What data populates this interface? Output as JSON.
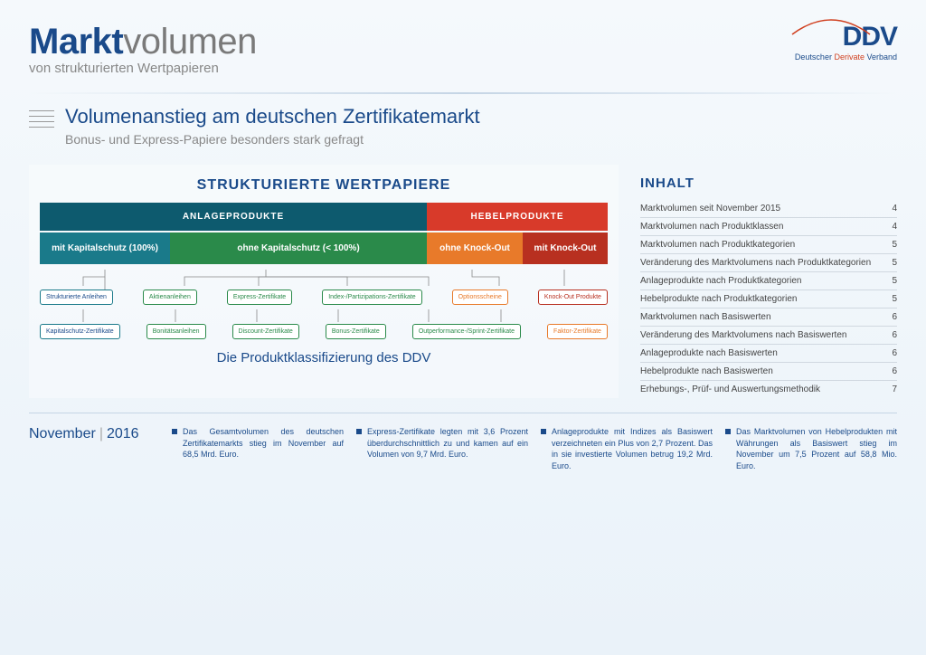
{
  "header": {
    "title_bold": "Markt",
    "title_rest": "volumen",
    "subtitle": "von strukturierten Wertpapieren",
    "logo_main": "DDV",
    "logo_sub_pre": "Deutscher ",
    "logo_sub_accent": "Derivate ",
    "logo_sub_post": "Verband"
  },
  "section": {
    "title": "Volumenanstieg am deutschen Zertifikatemarkt",
    "subtitle": "Bonus- und Express-Papiere besonders stark gefragt"
  },
  "diagram": {
    "title": "STRUKTURIERTE WERTPAPIERE",
    "level1": {
      "a": "ANLAGEPRODUKTE",
      "b": "HEBELPRODUKTE"
    },
    "level2": {
      "a": "mit Kapitalschutz (100%)",
      "b": "ohne Kapitalschutz (< 100%)",
      "c": "ohne Knock-Out",
      "d": "mit Knock-Out"
    },
    "chips_row1": {
      "c0": "Strukturierte Anleihen",
      "c1": "Aktienanleihen",
      "c2": "Express-Zertifikate",
      "c3": "Index-/Partizipations-Zertifikate",
      "c4": "Optionsscheine",
      "c5": "Knock-Out Produkte"
    },
    "chips_row2": {
      "c0": "Kapitalschutz-Zertifikate",
      "c1": "Bonitätsanleihen",
      "c2": "Discount-Zertifikate",
      "c3": "Bonus-Zertifikate",
      "c4": "Outperformance-/Sprint-Zertifikate",
      "c5": "Faktor-Zertifikate"
    },
    "footer": "Die Produktklassifizierung des DDV",
    "colors": {
      "teal": "#0d5a6e",
      "red": "#d83a2a",
      "cyan": "#1a7a8a",
      "green": "#2a8a4a",
      "orange": "#e87a2a",
      "darkred": "#b83020"
    }
  },
  "toc": {
    "title": "INHALT",
    "items": [
      {
        "label": "Marktvolumen seit November 2015",
        "page": "4"
      },
      {
        "label": "Marktvolumen nach Produktklassen",
        "page": "4"
      },
      {
        "label": "Marktvolumen nach Produktkategorien",
        "page": "5"
      },
      {
        "label": "Veränderung des Marktvolumens nach Produktkategorien",
        "page": "5"
      },
      {
        "label": "Anlageprodukte nach Produktkategorien",
        "page": "5"
      },
      {
        "label": "Hebelprodukte nach Produktkategorien",
        "page": "5"
      },
      {
        "label": "Marktvolumen nach Basiswerten",
        "page": "6"
      },
      {
        "label": "Veränderung des Marktvolumens nach Basiswerten",
        "page": "6"
      },
      {
        "label": "Anlageprodukte nach Basiswerten",
        "page": "6"
      },
      {
        "label": "Hebelprodukte nach Basiswerten",
        "page": "6"
      },
      {
        "label": "Erhebungs-, Prüf- und Auswertungsmethodik",
        "page": "7"
      }
    ]
  },
  "footer": {
    "month": "November",
    "year": "2016",
    "items": [
      "Das Gesamtvolumen des deutschen Zertifikatemarkts stieg im November auf 68,5 Mrd. Euro.",
      "Express-Zertifikate legten mit 3,6 Prozent überdurchschnittlich zu und kamen auf ein Volumen von 9,7 Mrd. Euro.",
      "Anlageprodukte mit Indizes als Basiswert verzeichneten ein Plus von 2,7 Prozent. Das in sie investierte Volumen betrug 19,2 Mrd. Euro.",
      "Das Marktvolumen von Hebelprodukten mit Währungen als Basiswert stieg im November um 7,5 Prozent auf 58,8 Mio. Euro."
    ]
  }
}
